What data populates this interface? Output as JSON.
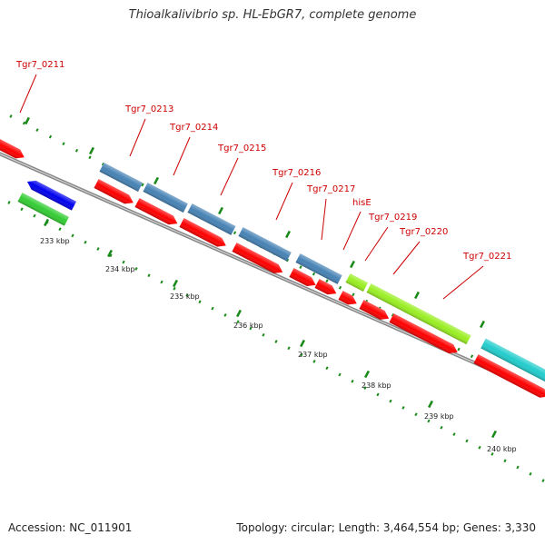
{
  "title": "Thioalkalivibrio sp. HL-EbGR7, complete genome",
  "footer": {
    "accession": "Accession: NC_011901",
    "topology": "Topology: circular; Length: 3,464,554 bp; Genes: 3,330"
  },
  "colors": {
    "cds": "#ff0000",
    "blue_track": "#4682b4",
    "lime_track": "#99ee22",
    "cyan_track": "#22cccc",
    "reverse_blue": "#0000ee",
    "green_track": "#33cc33",
    "backbone": "#888888",
    "ticks": "#1a8a1a",
    "label": "#cc0000"
  },
  "scale_labels": [
    "233 kbp",
    "234 kbp",
    "235 kbp",
    "236 kbp",
    "237 kbp",
    "238 kbp",
    "239 kbp",
    "240 kbp"
  ],
  "gene_labels": [
    "Tgr7_0211",
    "Tgr7_0213",
    "Tgr7_0214",
    "Tgr7_0215",
    "Tgr7_0216",
    "Tgr7_0217",
    "hisE",
    "Tgr7_0219",
    "Tgr7_0220",
    "Tgr7_0221"
  ]
}
